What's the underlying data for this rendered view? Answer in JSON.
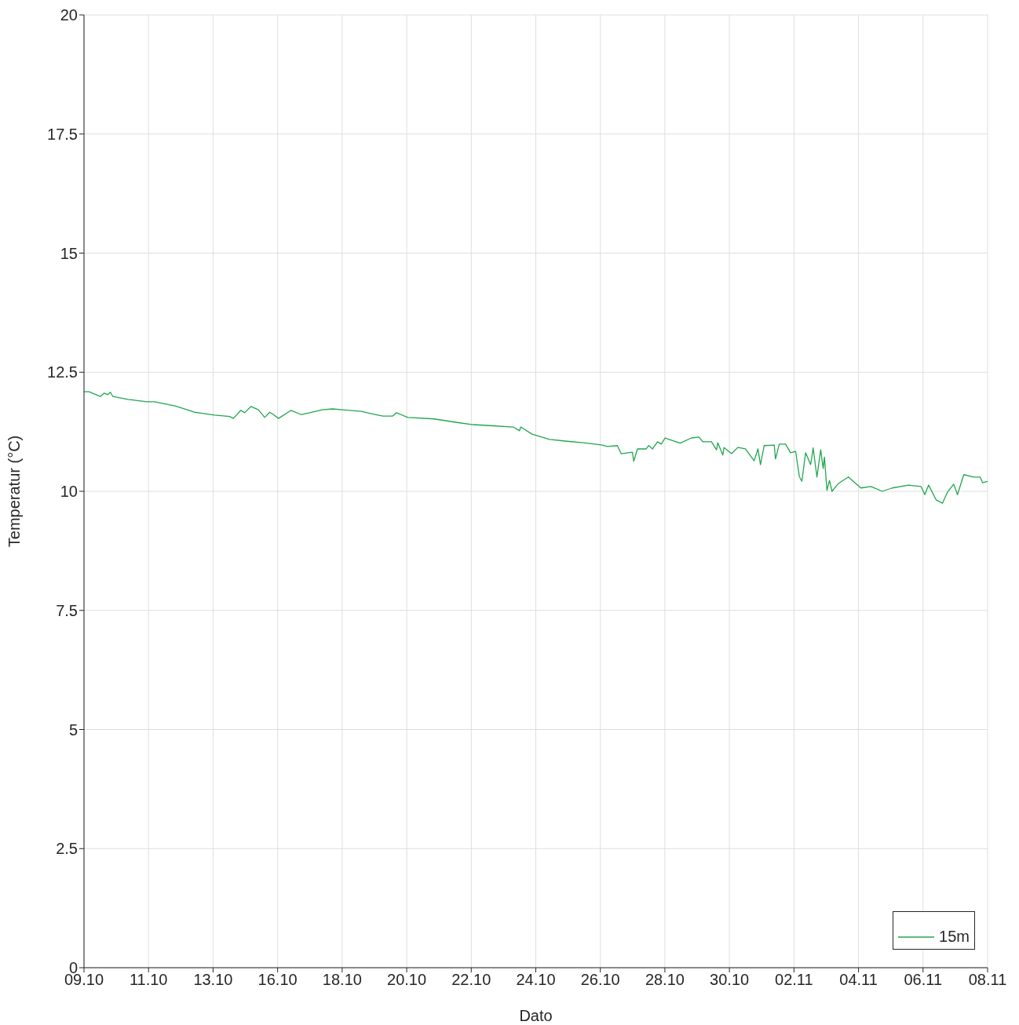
{
  "chart_data": {
    "type": "line",
    "xlabel": "Dato",
    "ylabel": "Temperatur (°C)",
    "x": [
      "--10-09T00:00",
      "--10-09T04:00",
      "--10-09T13:00",
      "--10-09T16:00",
      "--10-09T19:00",
      "--10-09T21:00",
      "--10-09T23:00",
      "--10-10T11:00",
      "--10-11T02:00",
      "--10-11T08:00",
      "--10-12T01:00",
      "--10-12T16:00",
      "--10-13T08:00",
      "--10-13T20:00",
      "--10-13T23:00",
      "--10-14T05:00",
      "--10-14T08:00",
      "--10-14T13:00",
      "--10-14T19:00",
      "--10-15T00:00",
      "--10-15T04:00",
      "--10-15T07:00",
      "--10-15T11:00",
      "--10-15T21:00",
      "--10-16T05:00",
      "--10-16T22:00",
      "--10-17T06:00",
      "--10-17T14:00",
      "--10-18T05:00",
      "--10-18T13:00",
      "--10-18T22:00",
      "--10-19T06:00",
      "--10-19T09:00",
      "--10-19T18:00",
      "--10-20T15:00",
      "--10-21T08:00",
      "--10-21T22:00",
      "--10-22T11:00",
      "--10-23T06:00",
      "--10-23T11:00",
      "--10-23T12:00",
      "--10-23T21:00",
      "--10-24T11:00",
      "--10-25T01:00",
      "--10-25T14:00",
      "--10-26T05:00",
      "--10-26T09:00",
      "--10-26T17:00",
      "--10-26T20:00",
      "--10-27T05:00",
      "--10-27T06:00",
      "--10-27T09:00",
      "--10-27T16:00",
      "--10-27T18:00",
      "--10-27T21:00",
      "--10-28T01:00",
      "--10-28T04:00",
      "--10-28T07:00",
      "--10-28T19:00",
      "--10-29T04:00",
      "--10-29T10:00",
      "--10-29T13:00",
      "--10-29T20:00",
      "--10-30T00:00",
      "--10-30T01:00",
      "--10-30T05:00",
      "--10-30T06:00",
      "--10-30T12:00",
      "--10-30T17:00",
      "--10-30T23:00",
      "--10-31T06:00",
      "--10-31T09:00",
      "--10-31T11:00",
      "--10-31T14:00",
      "--10-31T22:00",
      "--10-31T23:00",
      "--11-01T02:00",
      "--11-01T07:00",
      "--11-01T11:00",
      "--11-01T15:00",
      "--11-01T18:00",
      "--11-01T20:00",
      "--11-01T23:00",
      "--11-02T03:00",
      "--11-02T05:00",
      "--11-02T08:00",
      "--11-02T11:00",
      "--11-02T13:00",
      "--11-02T14:00",
      "--11-02T16:00",
      "--11-02T18:00",
      "--11-02T20:00",
      "--11-03T01:00",
      "--11-03T09:00",
      "--11-03T19:00",
      "--11-04T03:00",
      "--11-04T12:00",
      "--11-04T20:00",
      "--11-05T09:00",
      "--11-05T19:00",
      "--11-05T22:00",
      "--11-06T01:00",
      "--11-06T07:00",
      "--11-06T12:00",
      "--11-06T16:00",
      "--11-06T21:00",
      "--11-07T00:00",
      "--11-07T05:00",
      "--11-07T13:00",
      "--11-07T18:00",
      "--11-07T20:00",
      "--11-08T00:00"
    ],
    "series": [
      {
        "name": "15m",
        "color": "#22a64f",
        "values": [
          12.09,
          12.09,
          11.99,
          12.06,
          12.03,
          12.08,
          11.99,
          11.93,
          11.88,
          11.88,
          11.79,
          11.66,
          11.6,
          11.57,
          11.53,
          11.7,
          11.65,
          11.78,
          11.71,
          11.55,
          11.66,
          11.61,
          11.53,
          11.7,
          11.61,
          11.71,
          11.73,
          11.71,
          11.68,
          11.63,
          11.58,
          11.58,
          11.65,
          11.55,
          11.52,
          11.45,
          11.4,
          11.38,
          11.35,
          11.27,
          11.35,
          11.2,
          11.09,
          11.05,
          11.02,
          10.97,
          10.94,
          10.96,
          10.79,
          10.82,
          10.63,
          10.89,
          10.89,
          10.96,
          10.89,
          11.04,
          10.99,
          11.12,
          11.01,
          11.12,
          11.14,
          11.04,
          11.04,
          10.87,
          11.02,
          10.76,
          10.92,
          10.79,
          10.92,
          10.89,
          10.64,
          10.89,
          10.56,
          10.96,
          10.97,
          10.68,
          10.99,
          10.99,
          10.81,
          10.84,
          10.31,
          10.21,
          10.81,
          10.56,
          10.91,
          10.3,
          10.87,
          10.48,
          10.72,
          10.02,
          10.23,
          10.0,
          10.16,
          10.3,
          10.07,
          10.1,
          10.0,
          10.07,
          10.13,
          10.1,
          9.93,
          10.13,
          9.82,
          9.75,
          9.98,
          10.15,
          9.93,
          10.35,
          10.3,
          10.3,
          10.18,
          10.21
        ]
      }
    ],
    "xlim": [
      "--10-09T00:00",
      "--11-08T00:00"
    ],
    "xticks": [
      {
        "value": "--10-09T00:00",
        "label": "09.10"
      },
      {
        "value": "--10-11T03:26",
        "label": "11.10"
      },
      {
        "value": "--10-13T06:51",
        "label": "13.10"
      },
      {
        "value": "--10-15T10:17",
        "label": "16.10"
      },
      {
        "value": "--10-17T13:43",
        "label": "18.10"
      },
      {
        "value": "--10-19T17:09",
        "label": "20.10"
      },
      {
        "value": "--10-21T20:34",
        "label": "22.10"
      },
      {
        "value": "--10-24T00:00",
        "label": "24.10"
      },
      {
        "value": "--10-26T03:26",
        "label": "26.10"
      },
      {
        "value": "--10-28T06:51",
        "label": "28.10"
      },
      {
        "value": "--10-30T10:17",
        "label": "30.10"
      },
      {
        "value": "--11-01T13:43",
        "label": "02.11"
      },
      {
        "value": "--11-03T17:09",
        "label": "04.11"
      },
      {
        "value": "--11-05T20:34",
        "label": "06.11"
      },
      {
        "value": "--11-08T00:00",
        "label": "08.11"
      }
    ],
    "ylim": [
      0,
      20
    ],
    "yticks": [
      0,
      2.5,
      5,
      7.5,
      10,
      12.5,
      15,
      17.5,
      20
    ],
    "grid": true,
    "legend": "bottom right",
    "marker": "none",
    "line_style": "solid"
  }
}
